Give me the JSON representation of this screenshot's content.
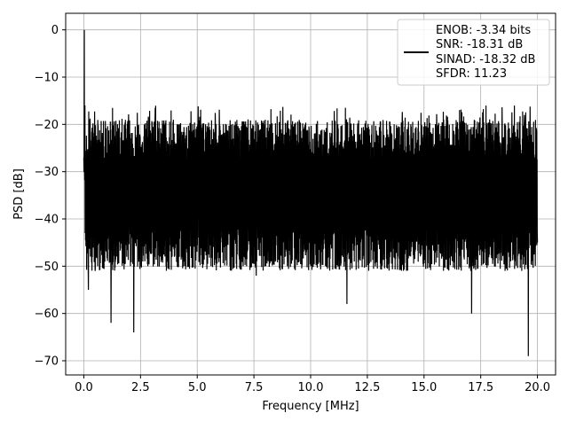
{
  "chart_data": {
    "type": "line",
    "title": "",
    "xlabel": "Frequency [MHz]",
    "ylabel": "PSD [dB]",
    "xlim": [
      -0.8,
      20.8
    ],
    "ylim": [
      -73,
      3.5
    ],
    "xticks": [
      0.0,
      2.5,
      5.0,
      7.5,
      10.0,
      12.5,
      15.0,
      17.5,
      20.0
    ],
    "xtick_labels": [
      "0.0",
      "2.5",
      "5.0",
      "7.5",
      "10.0",
      "12.5",
      "15.0",
      "17.5",
      "20.0"
    ],
    "yticks": [
      0,
      -10,
      -20,
      -30,
      -40,
      -50,
      -60,
      -70
    ],
    "ytick_labels": [
      "0",
      "−10",
      "−20",
      "−30",
      "−40",
      "−50",
      "−60",
      "−70"
    ],
    "grid": true,
    "legend": {
      "position": "top-right",
      "lines": [
        "ENOB: -3.34 bits",
        "SNR: -18.31 dB",
        "SINAD: -18.32 dB",
        "SFDR: 11.23"
      ]
    },
    "series": [
      {
        "color": "#000000",
        "description_points": {
          "x": [
            0.0,
            0.02,
            0.05,
            0.1,
            0.2,
            0.5,
            1.0,
            1.2,
            2.2,
            2.6,
            6.5,
            7.6,
            10.0,
            11.6,
            17.1,
            19.6,
            20.0
          ],
          "y": [
            -27,
            0,
            -16,
            -42,
            -55,
            -51,
            -47,
            -62,
            -64,
            -49,
            -50,
            -52,
            -48,
            -58,
            -60,
            -69,
            -45
          ]
        },
        "upper_envelope_db": -18,
        "lower_envelope_db": -45
      }
    ]
  },
  "colors": {
    "line": "#000000",
    "grid": "#b0b0b0",
    "axes": "#000000"
  }
}
